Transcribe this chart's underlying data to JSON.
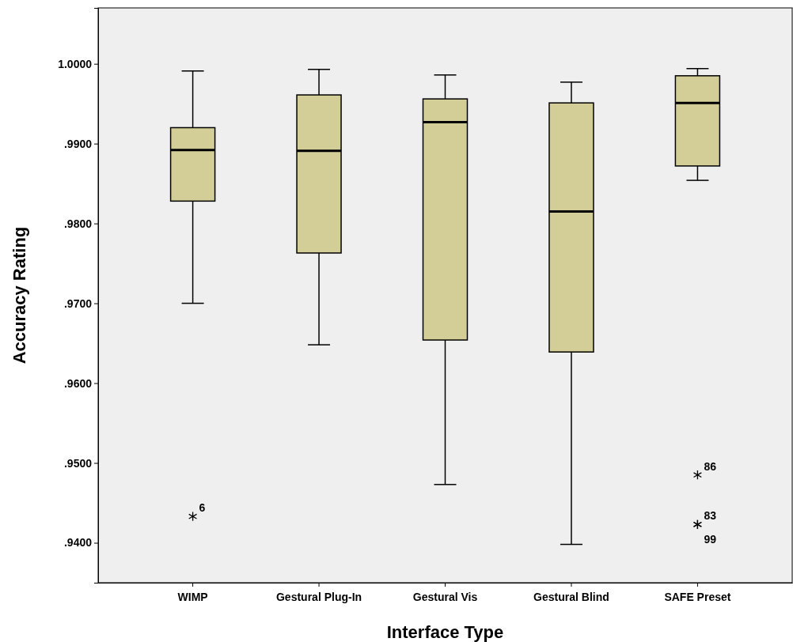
{
  "chart_data": {
    "type": "box",
    "xlabel": "Interface Type",
    "ylabel": "Accuracy Rating",
    "categories": [
      "WIMP",
      "Gestural Plug-In",
      "Gestural Vis",
      "Gestural Blind",
      "SAFE Preset"
    ],
    "color": "#d3ce97",
    "boxes": [
      {
        "low": 0.97,
        "q1": 0.9828,
        "median": 0.9892,
        "q3": 0.992,
        "high": 0.9991,
        "outliers": [
          0.9433
        ]
      },
      {
        "low": 0.9648,
        "q1": 0.9763,
        "median": 0.9891,
        "q3": 0.9961,
        "high": 0.9993
      },
      {
        "low": 0.9473,
        "q1": 0.9654,
        "median": 0.9927,
        "q3": 0.9956,
        "high": 0.9986
      },
      {
        "low": 0.9398,
        "q1": 0.9639,
        "median": 0.9815,
        "q3": 0.9951,
        "high": 0.9977
      },
      {
        "low": 0.9854,
        "q1": 0.9872,
        "median": 0.9951,
        "q3": 0.9985,
        "high": 0.9994,
        "outliers": [
          0.9485,
          0.9423,
          0.9423
        ]
      }
    ],
    "ylim": [
      0.935,
      1.007
    ],
    "yticks": [
      {
        "value": 0.94,
        "label": ".9400"
      },
      {
        "value": 0.95,
        "label": ".9500"
      },
      {
        "value": 0.96,
        "label": ".9600"
      },
      {
        "value": 0.97,
        "label": ".9700"
      },
      {
        "value": 0.98,
        "label": ".9800"
      },
      {
        "value": 0.99,
        "label": ".9900"
      },
      {
        "value": 1.0,
        "label": "1.0000"
      }
    ],
    "grid": false,
    "annotations": [
      "6",
      "86",
      "83",
      "99"
    ]
  }
}
